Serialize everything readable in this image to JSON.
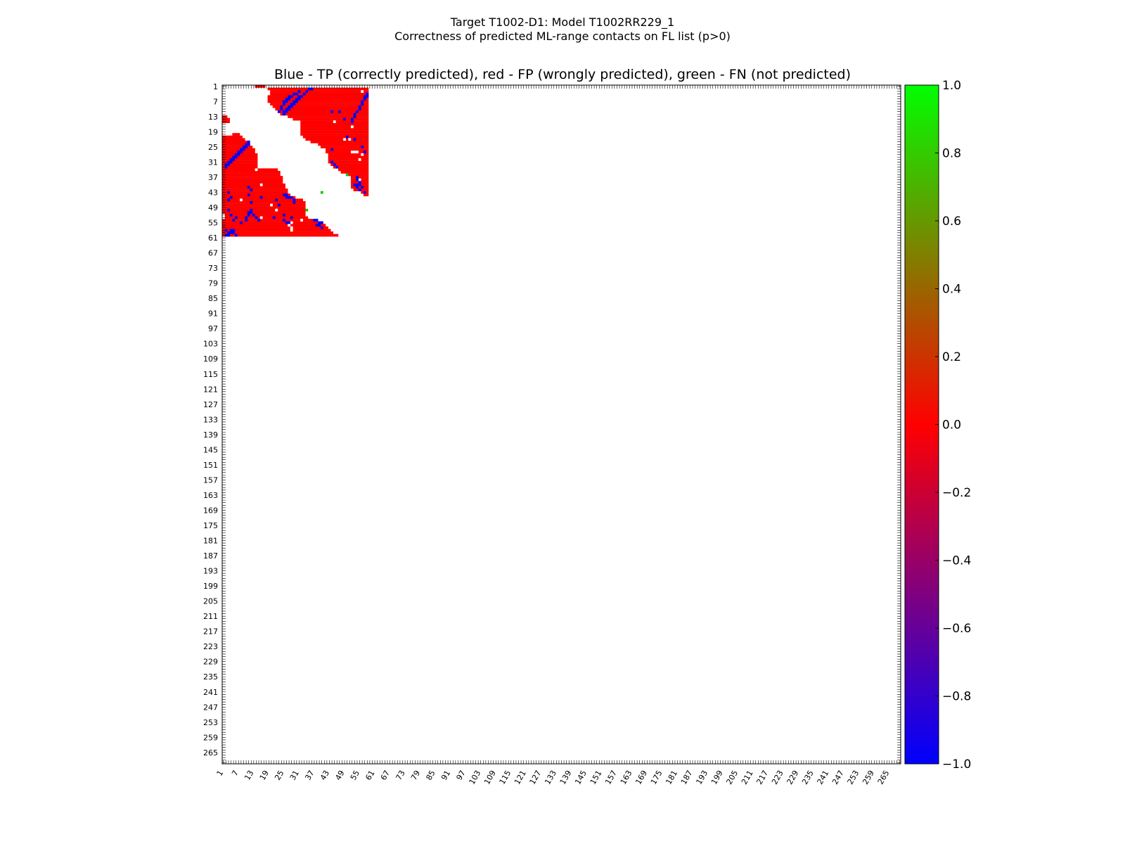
{
  "figure": {
    "title_line1": "Target T1002-D1: Model T1002RR229_1",
    "title_line2": "Correctness of predicted ML-range contacts on FL list (p>0)",
    "plot_title": "Blue - TP (correctly predicted), red - FP (wrongly predicted), green - FN (not predicted)"
  },
  "colors": {
    "tp": "#0000ff",
    "fp": "#ff0000",
    "fn": "#00cc00",
    "background": "#ffffff"
  },
  "chart_data": {
    "type": "heatmap",
    "n_residues": 269,
    "tick_labels": [
      "1",
      "7",
      "13",
      "19",
      "25",
      "31",
      "37",
      "43",
      "49",
      "55",
      "61",
      "67",
      "73",
      "79",
      "85",
      "91",
      "97",
      "103",
      "109",
      "115",
      "121",
      "127",
      "133",
      "139",
      "145",
      "151",
      "157",
      "163",
      "169",
      "175",
      "181",
      "187",
      "193",
      "199",
      "205",
      "211",
      "217",
      "223",
      "229",
      "235",
      "241",
      "247",
      "253",
      "259",
      "265"
    ],
    "colorbar": {
      "vmin": -1.0,
      "vmax": 1.0,
      "ticks": [
        "1.0",
        "0.8",
        "0.6",
        "0.4",
        "0.2",
        "0.0",
        "−0.2",
        "−0.4",
        "−0.6",
        "−0.8",
        "−1.0"
      ],
      "tick_values": [
        1.0,
        0.8,
        0.6,
        0.4,
        0.2,
        0.0,
        -0.2,
        -0.4,
        -0.6,
        -0.8,
        -1.0
      ],
      "colors": [
        "#0000ff",
        "#ff0000",
        "#00ff00"
      ]
    },
    "legend": {
      "tp_value": -1.0,
      "fp_value": 0.0,
      "fn_value": 1.0
    },
    "fp_regions_upper": [
      {
        "row": 1,
        "cols": [
          14,
          17
        ]
      },
      {
        "row": 2,
        "cols": [
          19,
          58
        ]
      },
      {
        "row": 3,
        "cols": [
          20,
          58
        ]
      },
      {
        "row": 4,
        "cols": [
          20,
          58
        ]
      },
      {
        "row": 5,
        "cols": [
          19,
          58
        ]
      },
      {
        "row": 6,
        "cols": [
          19,
          58
        ]
      },
      {
        "row": 7,
        "cols": [
          19,
          58
        ]
      },
      {
        "row": 8,
        "cols": [
          20,
          58
        ]
      },
      {
        "row": 9,
        "cols": [
          21,
          58
        ]
      },
      {
        "row": 10,
        "cols": [
          22,
          58
        ]
      },
      {
        "row": 11,
        "cols": [
          23,
          58
        ]
      },
      {
        "row": 12,
        "cols": [
          24,
          58
        ]
      },
      {
        "row": 13,
        "cols": [
          27,
          58
        ]
      },
      {
        "row": 14,
        "cols": [
          29,
          58
        ]
      },
      {
        "row": 15,
        "cols": [
          32,
          58
        ]
      },
      {
        "row": 16,
        "cols": [
          32,
          58
        ]
      },
      {
        "row": 17,
        "cols": [
          32,
          58
        ]
      },
      {
        "row": 18,
        "cols": [
          32,
          58
        ]
      },
      {
        "row": 19,
        "cols": [
          32,
          58
        ]
      },
      {
        "row": 20,
        "cols": [
          32,
          58
        ]
      },
      {
        "row": 21,
        "cols": [
          33,
          58
        ]
      },
      {
        "row": 22,
        "cols": [
          34,
          58
        ]
      },
      {
        "row": 23,
        "cols": [
          36,
          58
        ]
      },
      {
        "row": 24,
        "cols": [
          39,
          58
        ]
      },
      {
        "row": 25,
        "cols": [
          40,
          58
        ]
      },
      {
        "row": 26,
        "cols": [
          42,
          58
        ]
      },
      {
        "row": 27,
        "cols": [
          42,
          58
        ]
      },
      {
        "row": 28,
        "cols": [
          43,
          58
        ]
      },
      {
        "row": 29,
        "cols": [
          43,
          58
        ]
      },
      {
        "row": 30,
        "cols": [
          43,
          58
        ]
      },
      {
        "row": 31,
        "cols": [
          43,
          58
        ]
      },
      {
        "row": 32,
        "cols": [
          44,
          58
        ]
      },
      {
        "row": 33,
        "cols": [
          45,
          58
        ]
      },
      {
        "row": 34,
        "cols": [
          47,
          58
        ]
      },
      {
        "row": 35,
        "cols": [
          48,
          58
        ]
      },
      {
        "row": 36,
        "cols": [
          51,
          58
        ]
      },
      {
        "row": 37,
        "cols": [
          52,
          58
        ]
      },
      {
        "row": 38,
        "cols": [
          52,
          58
        ]
      },
      {
        "row": 39,
        "cols": [
          52,
          58
        ]
      },
      {
        "row": 40,
        "cols": [
          52,
          58
        ]
      },
      {
        "row": 41,
        "cols": [
          52,
          58
        ]
      },
      {
        "row": 42,
        "cols": [
          53,
          58
        ]
      },
      {
        "row": 43,
        "cols": [
          56,
          58
        ]
      },
      {
        "row": 44,
        "cols": [
          57,
          58
        ]
      }
    ],
    "fp_regions_lower": [
      {
        "row": 13,
        "cols": [
          1,
          2
        ]
      },
      {
        "row": 14,
        "cols": [
          1,
          3
        ]
      },
      {
        "row": 15,
        "cols": [
          1,
          3
        ]
      },
      {
        "row": 20,
        "cols": [
          5,
          7
        ]
      },
      {
        "row": 21,
        "cols": [
          1,
          8
        ]
      },
      {
        "row": 22,
        "cols": [
          1,
          9
        ]
      },
      {
        "row": 23,
        "cols": [
          1,
          10
        ]
      },
      {
        "row": 24,
        "cols": [
          1,
          11
        ]
      },
      {
        "row": 25,
        "cols": [
          1,
          12
        ]
      },
      {
        "row": 26,
        "cols": [
          1,
          13
        ]
      },
      {
        "row": 27,
        "cols": [
          1,
          13
        ]
      },
      {
        "row": 28,
        "cols": [
          1,
          14
        ]
      },
      {
        "row": 29,
        "cols": [
          1,
          14
        ]
      },
      {
        "row": 30,
        "cols": [
          1,
          14
        ]
      },
      {
        "row": 31,
        "cols": [
          1,
          14
        ]
      },
      {
        "row": 32,
        "cols": [
          1,
          14
        ]
      },
      {
        "row": 33,
        "cols": [
          1,
          14
        ]
      },
      {
        "row": 34,
        "cols": [
          1,
          22
        ]
      },
      {
        "row": 35,
        "cols": [
          1,
          23
        ]
      },
      {
        "row": 36,
        "cols": [
          1,
          23
        ]
      },
      {
        "row": 37,
        "cols": [
          1,
          24
        ]
      },
      {
        "row": 38,
        "cols": [
          1,
          24
        ]
      },
      {
        "row": 39,
        "cols": [
          1,
          24
        ]
      },
      {
        "row": 40,
        "cols": [
          1,
          25
        ]
      },
      {
        "row": 41,
        "cols": [
          1,
          25
        ]
      },
      {
        "row": 42,
        "cols": [
          1,
          26
        ]
      },
      {
        "row": 43,
        "cols": [
          1,
          26
        ]
      },
      {
        "row": 44,
        "cols": [
          1,
          27
        ]
      },
      {
        "row": 45,
        "cols": [
          1,
          29
        ]
      },
      {
        "row": 46,
        "cols": [
          1,
          32
        ]
      },
      {
        "row": 47,
        "cols": [
          1,
          33
        ]
      },
      {
        "row": 48,
        "cols": [
          1,
          33
        ]
      },
      {
        "row": 49,
        "cols": [
          1,
          33
        ]
      },
      {
        "row": 50,
        "cols": [
          1,
          33
        ]
      },
      {
        "row": 51,
        "cols": [
          1,
          33
        ]
      },
      {
        "row": 52,
        "cols": [
          1,
          33
        ]
      },
      {
        "row": 53,
        "cols": [
          1,
          34
        ]
      },
      {
        "row": 54,
        "cols": [
          1,
          36
        ]
      },
      {
        "row": 55,
        "cols": [
          1,
          40
        ]
      },
      {
        "row": 56,
        "cols": [
          1,
          41
        ]
      },
      {
        "row": 57,
        "cols": [
          1,
          42
        ]
      },
      {
        "row": 58,
        "cols": [
          1,
          43
        ]
      },
      {
        "row": 59,
        "cols": [
          1,
          44
        ]
      },
      {
        "row": 60,
        "cols": [
          1,
          46
        ]
      }
    ],
    "tp_cells": [
      [
        2,
        35
      ],
      [
        2,
        36
      ],
      [
        3,
        31
      ],
      [
        3,
        34
      ],
      [
        4,
        29
      ],
      [
        4,
        30
      ],
      [
        4,
        33
      ],
      [
        5,
        27
      ],
      [
        5,
        28
      ],
      [
        5,
        31
      ],
      [
        5,
        32
      ],
      [
        6,
        26
      ],
      [
        6,
        27
      ],
      [
        6,
        30
      ],
      [
        6,
        31
      ],
      [
        7,
        25
      ],
      [
        7,
        26
      ],
      [
        7,
        29
      ],
      [
        7,
        30
      ],
      [
        8,
        25
      ],
      [
        8,
        28
      ],
      [
        8,
        29
      ],
      [
        9,
        24
      ],
      [
        9,
        27
      ],
      [
        9,
        28
      ],
      [
        10,
        24
      ],
      [
        10,
        26
      ],
      [
        10,
        27
      ],
      [
        11,
        23
      ],
      [
        11,
        25
      ],
      [
        11,
        26
      ],
      [
        12,
        25
      ],
      [
        4,
        58
      ],
      [
        5,
        57
      ],
      [
        5,
        58
      ],
      [
        6,
        57
      ],
      [
        7,
        56
      ],
      [
        8,
        56
      ],
      [
        9,
        55
      ],
      [
        10,
        55
      ],
      [
        11,
        54
      ],
      [
        12,
        53
      ],
      [
        13,
        53
      ],
      [
        14,
        52
      ],
      [
        15,
        52
      ],
      [
        11,
        44
      ],
      [
        11,
        47
      ],
      [
        14,
        49
      ],
      [
        21,
        50
      ],
      [
        22,
        53
      ],
      [
        25,
        56
      ],
      [
        26,
        44
      ],
      [
        27,
        57
      ],
      [
        31,
        44
      ],
      [
        32,
        45
      ],
      [
        33,
        46
      ],
      [
        37,
        54
      ],
      [
        38,
        54
      ],
      [
        39,
        55
      ],
      [
        40,
        53
      ],
      [
        40,
        54
      ],
      [
        40,
        55
      ],
      [
        41,
        54
      ],
      [
        41,
        56
      ],
      [
        42,
        55
      ],
      [
        43,
        57
      ],
      [
        23,
        11
      ],
      [
        24,
        10
      ],
      [
        25,
        9
      ],
      [
        26,
        8
      ],
      [
        27,
        7
      ],
      [
        28,
        7
      ],
      [
        29,
        6
      ],
      [
        30,
        5
      ],
      [
        31,
        4
      ],
      [
        32,
        3
      ],
      [
        33,
        2
      ],
      [
        24,
        11
      ],
      [
        25,
        10
      ],
      [
        26,
        9
      ],
      [
        27,
        8
      ],
      [
        28,
        6
      ],
      [
        29,
        5
      ],
      [
        30,
        4
      ],
      [
        31,
        3
      ],
      [
        32,
        2
      ],
      [
        43,
        3
      ],
      [
        44,
        26
      ],
      [
        45,
        27
      ],
      [
        45,
        28
      ],
      [
        46,
        29
      ],
      [
        47,
        29
      ],
      [
        44,
        25
      ],
      [
        45,
        26
      ],
      [
        47,
        12
      ],
      [
        48,
        23
      ],
      [
        50,
        12
      ],
      [
        51,
        11
      ],
      [
        51,
        12
      ],
      [
        52,
        11
      ],
      [
        52,
        13
      ],
      [
        53,
        10
      ],
      [
        53,
        14
      ],
      [
        54,
        10
      ],
      [
        54,
        15
      ],
      [
        53,
        21
      ],
      [
        54,
        25
      ],
      [
        55,
        26
      ],
      [
        55,
        27
      ],
      [
        54,
        38
      ],
      [
        55,
        39
      ],
      [
        56,
        39
      ],
      [
        57,
        40
      ],
      [
        55,
        40
      ],
      [
        54,
        37
      ],
      [
        56,
        38
      ],
      [
        58,
        4
      ],
      [
        59,
        3
      ],
      [
        59,
        4
      ],
      [
        60,
        2
      ],
      [
        60,
        3
      ],
      [
        58,
        5
      ],
      [
        59,
        5
      ],
      [
        60,
        6
      ],
      [
        54,
        5
      ],
      [
        53,
        6
      ],
      [
        52,
        4
      ],
      [
        55,
        8
      ],
      [
        45,
        4
      ],
      [
        46,
        3
      ],
      [
        41,
        11
      ],
      [
        42,
        12
      ],
      [
        44,
        11
      ],
      [
        45,
        16
      ],
      [
        46,
        22
      ],
      [
        50,
        3
      ],
      [
        52,
        25
      ],
      [
        53,
        28
      ],
      [
        58,
        2
      ]
    ],
    "fn_cells": [
      [
        36,
        50
      ],
      [
        50,
        34
      ],
      [
        43,
        40
      ]
    ],
    "white_gaps": [
      [
        3,
        56
      ],
      [
        15,
        45
      ],
      [
        17,
        52
      ],
      [
        22,
        49
      ],
      [
        22,
        51
      ],
      [
        27,
        52
      ],
      [
        27,
        53
      ],
      [
        27,
        54
      ],
      [
        28,
        56
      ],
      [
        30,
        55
      ],
      [
        38,
        55
      ],
      [
        34,
        14
      ],
      [
        40,
        16
      ],
      [
        46,
        8
      ],
      [
        48,
        20
      ],
      [
        50,
        22
      ],
      [
        53,
        16
      ],
      [
        54,
        32
      ],
      [
        55,
        28
      ],
      [
        56,
        27
      ],
      [
        57,
        28
      ],
      [
        58,
        28
      ],
      [
        52,
        1
      ],
      [
        53,
        1
      ]
    ]
  }
}
